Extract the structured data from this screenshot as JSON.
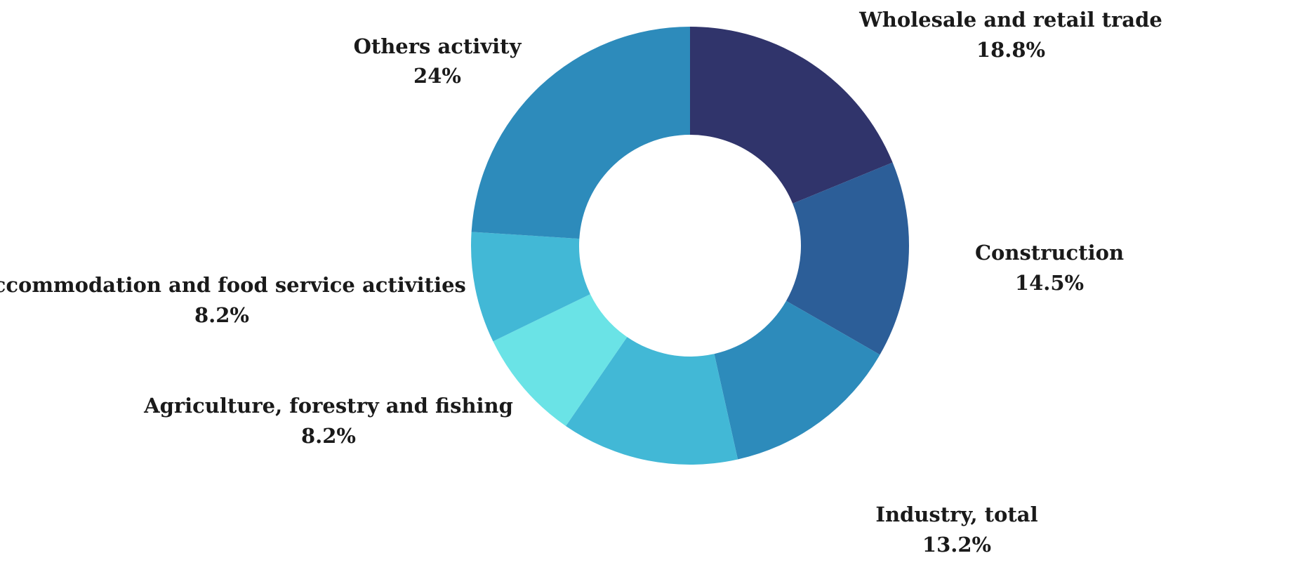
{
  "chart_data": {
    "type": "pie",
    "style": "donut",
    "title": "",
    "categories": [
      "Wholesale and  retail trade",
      "Construction",
      "Industry, total",
      "",
      "Agriculture, forestry and fishing",
      "Accommodation and food service activities",
      "Others activity"
    ],
    "values": [
      18.8,
      14.5,
      13.2,
      13.1,
      8.2,
      8.2,
      24
    ],
    "value_labels": [
      "18.8%",
      "14.5%",
      "13.2%",
      "",
      "8.2%",
      "8.2%",
      "24%"
    ],
    "colors": [
      "#30346b",
      "#2c5e98",
      "#2d8bbb",
      "#42b8d6",
      "#6ae3e6",
      "#42b8d6",
      "#2d8bbb"
    ],
    "start_angle_deg": 0,
    "direction": "clockwise",
    "legend": "none"
  }
}
